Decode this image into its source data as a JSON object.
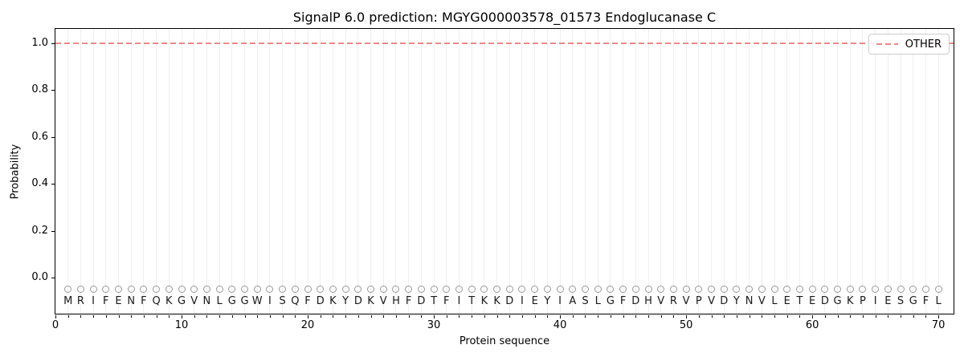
{
  "chart_data": {
    "type": "line",
    "title": "SignalP 6.0 prediction: MGYG000003578_01573 Endoglucanase C",
    "xlabel": "Protein sequence",
    "ylabel": "Probability",
    "xlim": [
      0,
      71.2
    ],
    "ylim": [
      -0.153,
      1.061
    ],
    "x_ticks": [
      0,
      10,
      20,
      30,
      40,
      50,
      60,
      70
    ],
    "y_ticks": [
      0.0,
      0.2,
      0.4,
      0.6,
      0.8,
      1.0
    ],
    "grid": {
      "vertical_per_residue": true,
      "horizontal": false,
      "color": "#efefef"
    },
    "sequence": "MRIFENFQKGVNLGGWISQFDKYDKVHFDTFITKKDIEYIASLGFDHVRVPVDYNVLETEDGKPIESGFL",
    "sequence_length": 70,
    "series": [
      {
        "name": "OTHER",
        "style": "dashed",
        "color": "#ee8888",
        "y_constant": 1.0,
        "span": "full-plot-width"
      }
    ],
    "residue_markers": {
      "shape": "open-circle",
      "edge_color": "#999999",
      "y": -0.05,
      "x_positions": "1..70"
    },
    "legend": {
      "position": "upper right",
      "entries": [
        {
          "label": "OTHER",
          "color": "#ee8888",
          "dash": true
        }
      ]
    },
    "colors": {
      "spine": "#000000",
      "tick_text": "#000000",
      "sequence_text": "#1a1a1a",
      "background": "#ffffff"
    }
  }
}
